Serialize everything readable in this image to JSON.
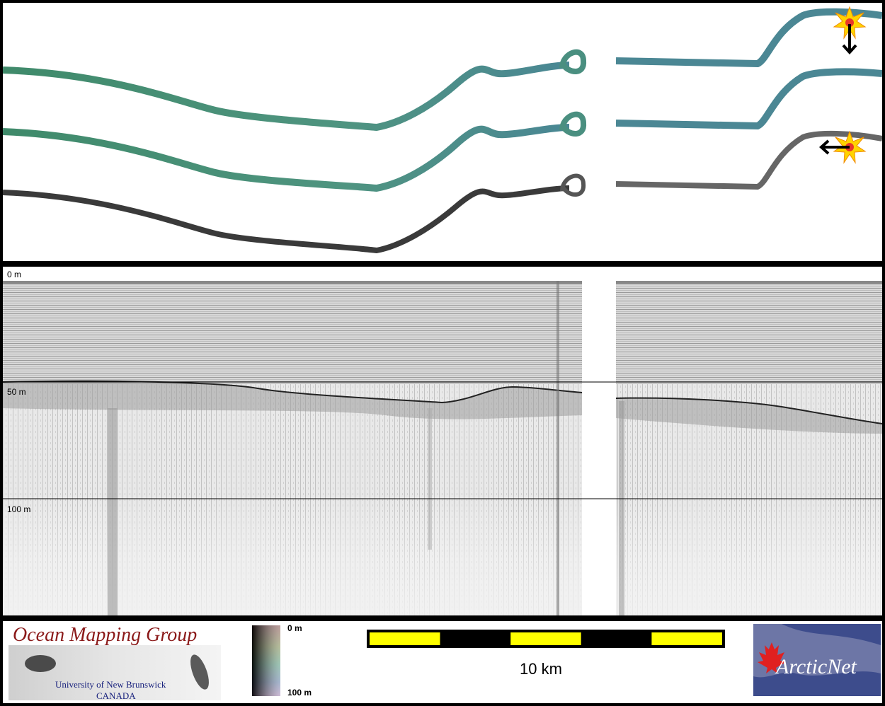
{
  "profile": {
    "depth_labels": [
      "0 m",
      "50 m",
      "100 m"
    ]
  },
  "legend": {
    "colorbar_top": "0 m",
    "colorbar_bottom": "100 m"
  },
  "scalebar": {
    "label": "10 km",
    "segments": 5,
    "colors": [
      "#ffff00",
      "#000000"
    ]
  },
  "logos": {
    "omg_title": "Ocean Mapping Group",
    "omg_line1": "University of New Brunswick",
    "omg_line2": "CANADA",
    "arcticnet": "ArcticNet"
  },
  "colors": {
    "track_green": "#4f8f7c",
    "track_grey": "#555555",
    "marker": "#ffcc00"
  }
}
